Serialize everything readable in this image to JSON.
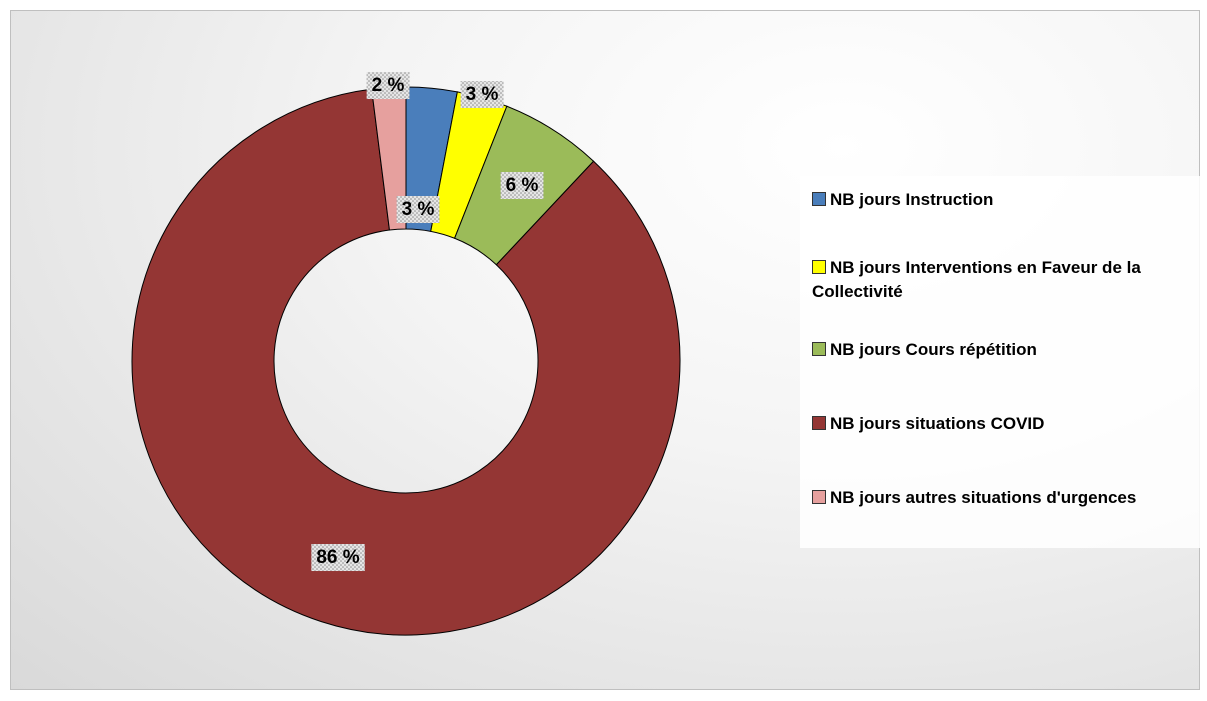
{
  "chart_data": {
    "type": "donut",
    "categories": [
      "NB jours Instruction",
      "NB jours Interventions en Faveur de la Collectivité",
      "NB jours Cours répétition",
      "NB jours situations COVID",
      "NB jours autres situations d'urgences"
    ],
    "values": [
      3,
      3,
      6,
      86,
      2
    ],
    "value_labels": [
      "3 %",
      "3 %",
      "6 %",
      "86 %",
      "2 %"
    ],
    "colors": [
      "#4a7ebb",
      "#ffff00",
      "#9bbb59",
      "#943634",
      "#e6a09e"
    ],
    "legend": "right"
  }
}
